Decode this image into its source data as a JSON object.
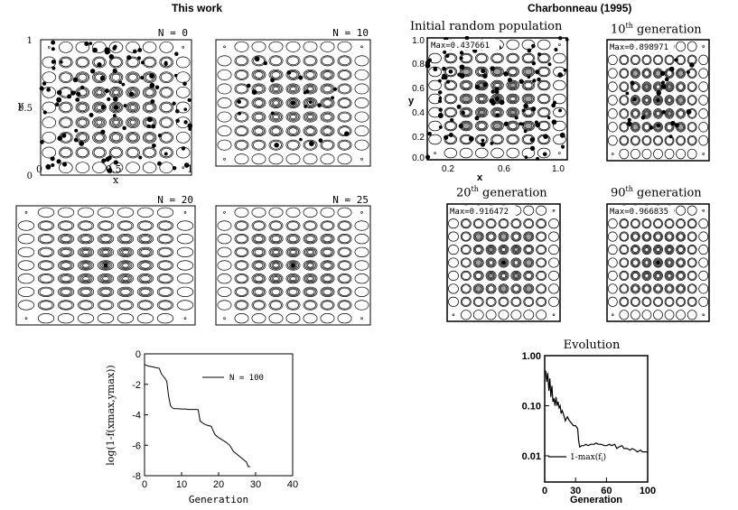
{
  "headers": {
    "left": "This work",
    "right": "Charbonneau (1995)"
  },
  "this_work_panels": [
    {
      "label": "N = 0",
      "dots": "many",
      "xlabel": "x",
      "ylabel": "y",
      "xticks": [
        "0",
        "0.5",
        "1"
      ],
      "yticks": [
        "0",
        "0.5",
        "1"
      ]
    },
    {
      "label": "N = 10",
      "dots": "few"
    },
    {
      "label": "N = 20",
      "dots": "none"
    },
    {
      "label": "N = 25",
      "dots": "none"
    }
  ],
  "charbonneau_panels": [
    {
      "title_main": "Initial random population",
      "title_sup": "",
      "title_rest": "",
      "max_label": "Max=0.437661",
      "xlabel": "x",
      "ylabel": "y",
      "xticks": [
        "0.2",
        "0.6",
        "1.0"
      ],
      "yticks": [
        "0.0",
        "0.2",
        "0.4",
        "0.6",
        "0.8",
        "1.0"
      ]
    },
    {
      "title_main": "10",
      "title_sup": "th",
      "title_rest": " generation",
      "max_label": "Max=0.898971"
    },
    {
      "title_main": "20",
      "title_sup": "th",
      "title_rest": " generation",
      "max_label": "Max=0.916472"
    },
    {
      "title_main": "90",
      "title_sup": "th",
      "title_rest": " generation",
      "max_label": "Max=0.966835"
    }
  ],
  "chart_data": [
    {
      "type": "line",
      "title": "",
      "xlabel": "Generation",
      "ylabel": "log(1-f(xmax,ymax))",
      "xlim": [
        0,
        40
      ],
      "ylim": [
        -8,
        0
      ],
      "xticks": [
        "0",
        "10",
        "20",
        "30",
        "40"
      ],
      "yticks": [
        "0",
        "-2",
        "-4",
        "-6",
        "-8"
      ],
      "legend": "N = 100",
      "series": [
        {
          "name": "N = 100",
          "x": [
            0,
            0.5,
            1,
            2,
            3,
            4,
            4.5,
            5,
            5.5,
            6,
            6.5,
            7,
            7.5,
            8,
            9,
            10,
            11,
            12,
            13,
            14,
            14.5,
            15,
            16,
            17,
            18,
            19,
            20,
            21,
            22,
            23,
            24,
            25,
            26,
            27,
            27.5,
            28,
            28.5
          ],
          "y": [
            -0.7,
            -0.75,
            -0.8,
            -0.85,
            -0.9,
            -0.95,
            -1.3,
            -1.45,
            -1.6,
            -1.8,
            -2.8,
            -3.4,
            -3.55,
            -3.6,
            -3.6,
            -3.62,
            -3.62,
            -3.65,
            -3.65,
            -3.65,
            -3.66,
            -4.4,
            -4.6,
            -4.7,
            -4.75,
            -5.3,
            -5.5,
            -5.65,
            -5.8,
            -6.0,
            -6.4,
            -6.6,
            -6.8,
            -7.0,
            -7.1,
            -7.4,
            -7.4
          ]
        }
      ]
    },
    {
      "type": "line",
      "title": "Evolution",
      "xlabel": "Generation",
      "ylabel": "",
      "yscale": "log",
      "xlim": [
        0,
        100
      ],
      "ylim": [
        0.003,
        1.0
      ],
      "xticks": [
        "0",
        "30",
        "60",
        "100"
      ],
      "yticks": [
        "1.00",
        "0.10",
        "0.01"
      ],
      "legend": "1-max(f_i)",
      "legend_main": "1-max(f",
      "legend_sub": "i",
      "legend_end": ")",
      "series": [
        {
          "name": "1-max(f_i)",
          "x": [
            1,
            2,
            3,
            4,
            5,
            6,
            7,
            8,
            9,
            10,
            11,
            12,
            13,
            14,
            15,
            16,
            17,
            18,
            19,
            20,
            22,
            24,
            26,
            28,
            30,
            32,
            33,
            34,
            36,
            38,
            40,
            42,
            45,
            48,
            50,
            52,
            55,
            58,
            60,
            63,
            65,
            68,
            70,
            72,
            75,
            77,
            80,
            83,
            85,
            88,
            90,
            93,
            95,
            98,
            100
          ],
          "y": [
            0.5,
            0.3,
            0.45,
            0.2,
            0.35,
            0.15,
            0.25,
            0.12,
            0.14,
            0.1,
            0.15,
            0.1,
            0.12,
            0.09,
            0.1,
            0.07,
            0.08,
            0.07,
            0.06,
            0.05,
            0.06,
            0.05,
            0.045,
            0.04,
            0.04,
            0.035,
            0.02,
            0.015,
            0.016,
            0.016,
            0.017,
            0.016,
            0.017,
            0.017,
            0.018,
            0.017,
            0.017,
            0.016,
            0.016,
            0.017,
            0.016,
            0.017,
            0.014,
            0.015,
            0.016,
            0.014,
            0.014,
            0.013,
            0.014,
            0.013,
            0.012,
            0.013,
            0.012,
            0.012,
            0.012
          ]
        }
      ]
    }
  ]
}
